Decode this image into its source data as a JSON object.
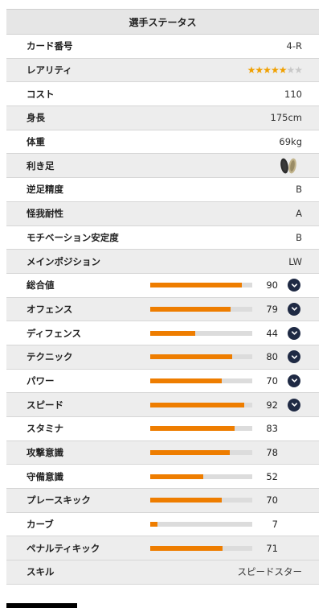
{
  "title": "選手ステータス",
  "info": [
    {
      "label": "カード番号",
      "value": "4-R"
    },
    {
      "label": "レアリティ",
      "stars_filled": 5,
      "stars_total": 7
    },
    {
      "label": "コスト",
      "value": "110"
    },
    {
      "label": "身長",
      "value": "175cm"
    },
    {
      "label": "体重",
      "value": "69kg"
    },
    {
      "label": "利き足",
      "icon": "feet-icon"
    },
    {
      "label": "逆足精度",
      "value": "B"
    },
    {
      "label": "怪我耐性",
      "value": "A"
    },
    {
      "label": "モチベーション安定度",
      "value": "B"
    },
    {
      "label": "メインポジション",
      "value": "LW"
    }
  ],
  "stats": [
    {
      "label": "総合値",
      "value": 90,
      "expand": true
    },
    {
      "label": "オフェンス",
      "value": 79,
      "expand": true
    },
    {
      "label": "ディフェンス",
      "value": 44,
      "expand": true
    },
    {
      "label": "テクニック",
      "value": 80,
      "expand": true
    },
    {
      "label": "パワー",
      "value": 70,
      "expand": true
    },
    {
      "label": "スピード",
      "value": 92,
      "expand": true
    },
    {
      "label": "スタミナ",
      "value": 83,
      "expand": false
    },
    {
      "label": "攻撃意識",
      "value": 78,
      "expand": false
    },
    {
      "label": "守備意識",
      "value": 52,
      "expand": false
    },
    {
      "label": "プレースキック",
      "value": 70,
      "expand": false
    },
    {
      "label": "カーブ",
      "value": 7,
      "expand": false
    },
    {
      "label": "ペナルティキック",
      "value": 71,
      "expand": false
    }
  ],
  "skill": {
    "label": "スキル",
    "value": "スピードスター"
  },
  "colors": {
    "bar_fill": "#ee7d00",
    "bar_track": "#dcdcdc",
    "star_on": "#f0a000",
    "star_off": "#c8c8c8",
    "chevron_bg": "#1f2a44"
  }
}
